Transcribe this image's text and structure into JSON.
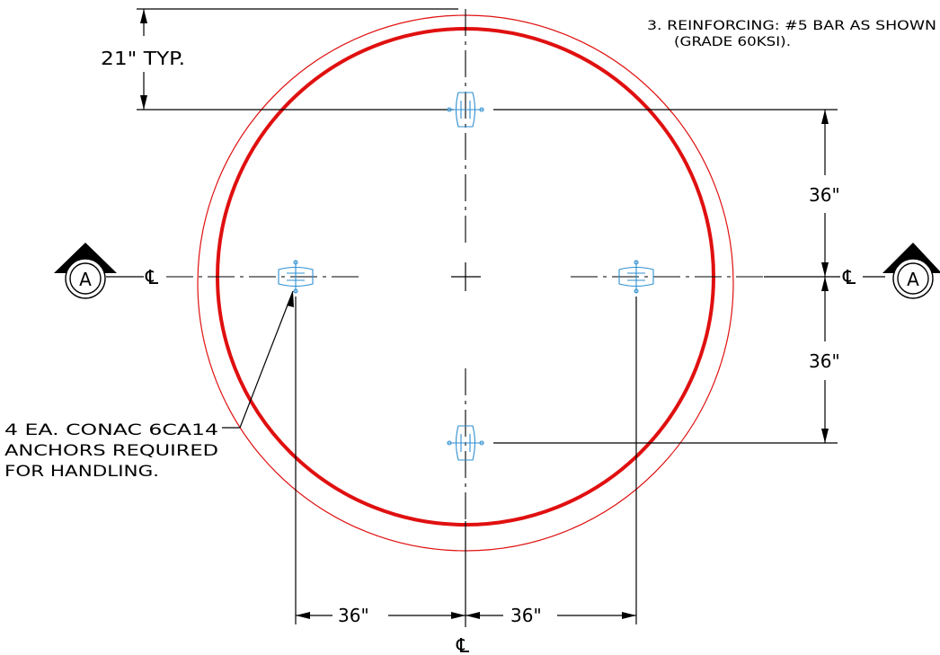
{
  "notes": {
    "reinforcing_line1": "3.  REINFORCING: #5 BAR AS SHOWN",
    "reinforcing_line2": "(GRADE 60KSI)."
  },
  "dimensions": {
    "top_typ": "21\"  TYP.",
    "right_upper": "36\"",
    "right_lower": "36\"",
    "bottom_left": "36\"",
    "bottom_right": "36\""
  },
  "anchor_callout": {
    "line1": "4 EA. CONAC 6CA14",
    "line2": "ANCHORS REQUIRED",
    "line3": "FOR HANDLING."
  },
  "section_marks": {
    "left": "A",
    "right": "A"
  },
  "centerline_symbol": "℄",
  "colors": {
    "ring": "#e01010",
    "anchor": "#2f8fd0",
    "linework": "#000000"
  }
}
